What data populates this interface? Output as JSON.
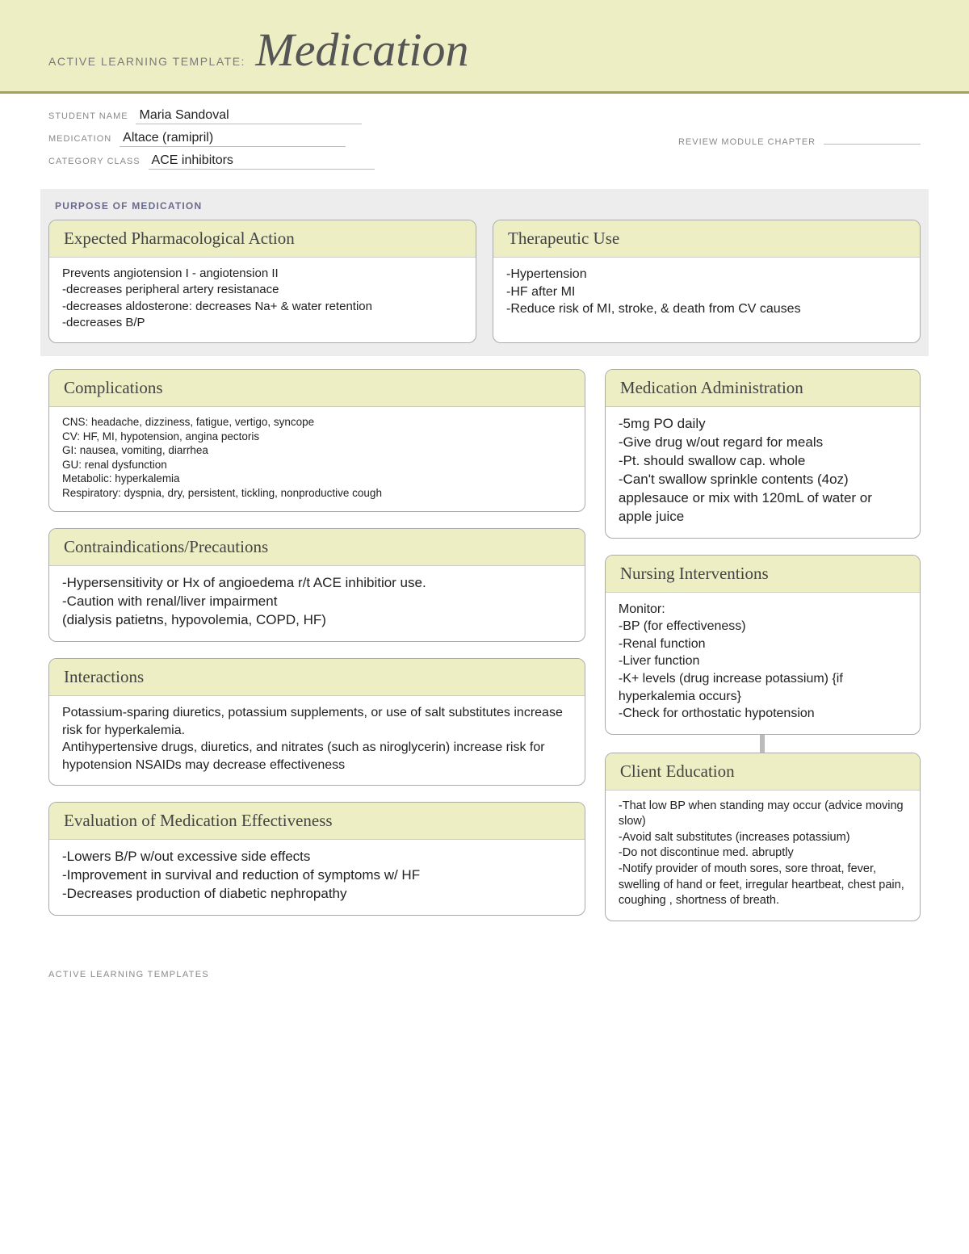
{
  "header": {
    "pretitle": "ACTIVE LEARNING TEMPLATE:",
    "title": "Medication"
  },
  "meta": {
    "student_label": "STUDENT NAME",
    "student_value": "Maria Sandoval",
    "medication_label": "MEDICATION",
    "medication_value": "Altace (ramipril)",
    "category_label": "CATEGORY CLASS",
    "category_value": "ACE inhibitors",
    "review_label": "REVIEW MODULE CHAPTER",
    "review_value": ""
  },
  "purpose": {
    "section_label": "PURPOSE OF MEDICATION",
    "pharm": {
      "title": "Expected Pharmacological Action",
      "body": "Prevents angiotension I - angiotension II\n-decreases peripheral artery resistanace\n-decreases aldosterone: decreases Na+ & water retention\n-decreases B/P"
    },
    "therapeutic": {
      "title": "Therapeutic Use",
      "body": "-Hypertension\n-HF after MI\n-Reduce risk of MI, stroke, & death from CV causes"
    }
  },
  "complications": {
    "title": "Complications",
    "body": "CNS: headache, dizziness, fatigue, vertigo, syncope\nCV: HF, MI, hypotension, angina pectoris\nGI: nausea, vomiting, diarrhea\nGU: renal dysfunction\nMetabolic: hyperkalemia\nRespiratory: dyspnia, dry, persistent, tickling, nonproductive cough"
  },
  "contra": {
    "title": "Contraindications/Precautions",
    "body": "-Hypersensitivity or Hx of angioedema r/t ACE inhibitior use.\n-Caution with renal/liver impairment\n(dialysis patietns, hypovolemia, COPD, HF)"
  },
  "interactions": {
    "title": "Interactions",
    "body": "Potassium-sparing diuretics, potassium supplements, or use of salt substitutes increase risk for hyperkalemia.\nAntihypertensive drugs, diuretics, and nitrates (such as niroglycerin) increase risk for hypotension NSAIDs may decrease effectiveness"
  },
  "evaluation": {
    "title": "Evaluation of Medication Effectiveness",
    "body": "-Lowers B/P w/out excessive side effects\n-Improvement in survival and reduction of symptoms w/ HF\n-Decreases production of diabetic nephropathy"
  },
  "admin": {
    "title": "Medication Administration",
    "body": "-5mg PO daily\n-Give drug w/out regard for meals\n-Pt. should swallow cap. whole\n-Can't swallow sprinkle contents (4oz) applesauce or mix with 120mL of water or apple juice"
  },
  "nursing": {
    "title": "Nursing Interventions",
    "body": "Monitor:\n-BP (for effectiveness)\n-Renal function\n-Liver function\n-K+ levels (drug increase potassium) {if hyperkalemia occurs}\n-Check for orthostatic hypotension"
  },
  "client_ed": {
    "title": "Client Education",
    "body": "-That low BP when standing may occur (advice moving slow)\n-Avoid salt substitutes (increases potassium)\n-Do not discontinue med. abruptly\n-Notify provider of mouth sores, sore throat, fever, swelling of hand or feet, irregular heartbeat, chest pain, coughing , shortness of breath."
  },
  "footer": "ACTIVE LEARNING TEMPLATES",
  "colors": {
    "band": "#eeeec4",
    "rule": "#a3a156",
    "section_bg": "#ededed"
  }
}
